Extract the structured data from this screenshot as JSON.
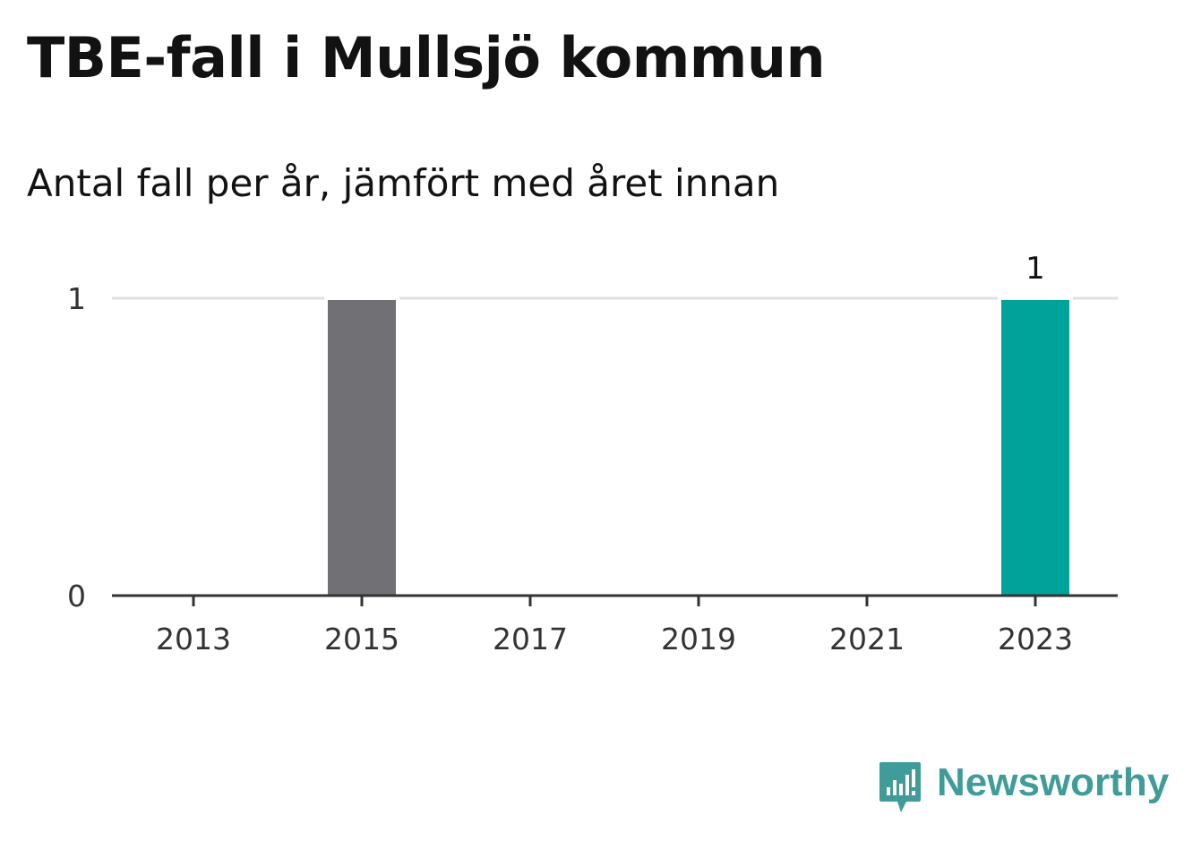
{
  "title": "TBE-fall i Mullsjö kommun",
  "subtitle": "Antal fall per år, jämfört med året innan",
  "brand": {
    "name": "Newsworthy",
    "icon": "newsworthy-logo-icon",
    "color": "#3f9c98"
  },
  "chart_data": {
    "type": "bar",
    "categories": [
      "2013",
      "2014",
      "2015",
      "2016",
      "2017",
      "2018",
      "2019",
      "2020",
      "2021",
      "2022",
      "2023"
    ],
    "values": [
      0,
      0,
      1,
      0,
      0,
      0,
      0,
      0,
      0,
      0,
      1
    ],
    "x_tick_labels": [
      "2013",
      "2015",
      "2017",
      "2019",
      "2021",
      "2023"
    ],
    "ylim": [
      0,
      1
    ],
    "y_ticks": [
      0,
      1
    ],
    "grid": true,
    "colors": {
      "default": "#707075",
      "highlight": "#00a39a",
      "grid": "#e0e0e0",
      "axis": "#333333"
    },
    "highlight_category": "2023",
    "data_labels": [
      {
        "category": "2023",
        "text": "1"
      }
    ],
    "title": "TBE-fall i Mullsjö kommun",
    "subtitle": "Antal fall per år, jämfört med året innan",
    "xlabel": "",
    "ylabel": ""
  }
}
